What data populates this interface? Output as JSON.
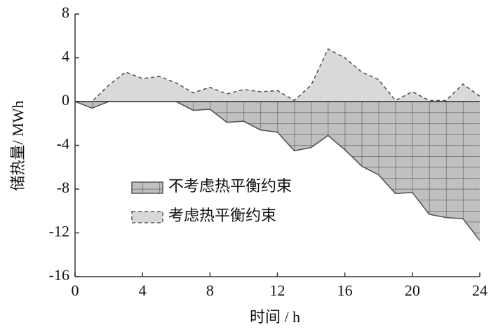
{
  "chart_data": {
    "type": "area",
    "xlabel": "时间 / h",
    "ylabel": "储热量/ MWh",
    "x": [
      0,
      1,
      2,
      3,
      4,
      5,
      6,
      7,
      8,
      9,
      10,
      11,
      12,
      13,
      14,
      15,
      16,
      17,
      18,
      19,
      20,
      21,
      22,
      23,
      24
    ],
    "series": [
      {
        "name": "不考虑热平衡约束",
        "color": "#c0c0c0",
        "values": [
          0,
          -0.6,
          0,
          0,
          0,
          0,
          0,
          -0.8,
          -0.7,
          -1.9,
          -1.8,
          -2.6,
          -2.8,
          -4.5,
          -4.2,
          -3.1,
          -4.4,
          -5.9,
          -6.7,
          -8.4,
          -8.3,
          -10.3,
          -10.6,
          -10.7,
          -12.7
        ]
      },
      {
        "name": "考虑热平衡约束",
        "color": "#d9d9d9",
        "values": [
          0,
          0,
          1.5,
          2.7,
          2.1,
          2.3,
          1.7,
          0.8,
          1.3,
          0.7,
          1.1,
          0.9,
          1.0,
          0.1,
          1.5,
          4.8,
          4.0,
          2.7,
          2.0,
          0.1,
          0.9,
          0.1,
          0.1,
          1.6,
          0.5
        ]
      }
    ],
    "xlim": [
      0,
      24
    ],
    "xticks": [
      0,
      4,
      8,
      12,
      16,
      20,
      24
    ],
    "ylim": [
      -16,
      8
    ],
    "yticks": [
      -16,
      -12,
      -8,
      -4,
      0,
      4,
      8
    ]
  }
}
